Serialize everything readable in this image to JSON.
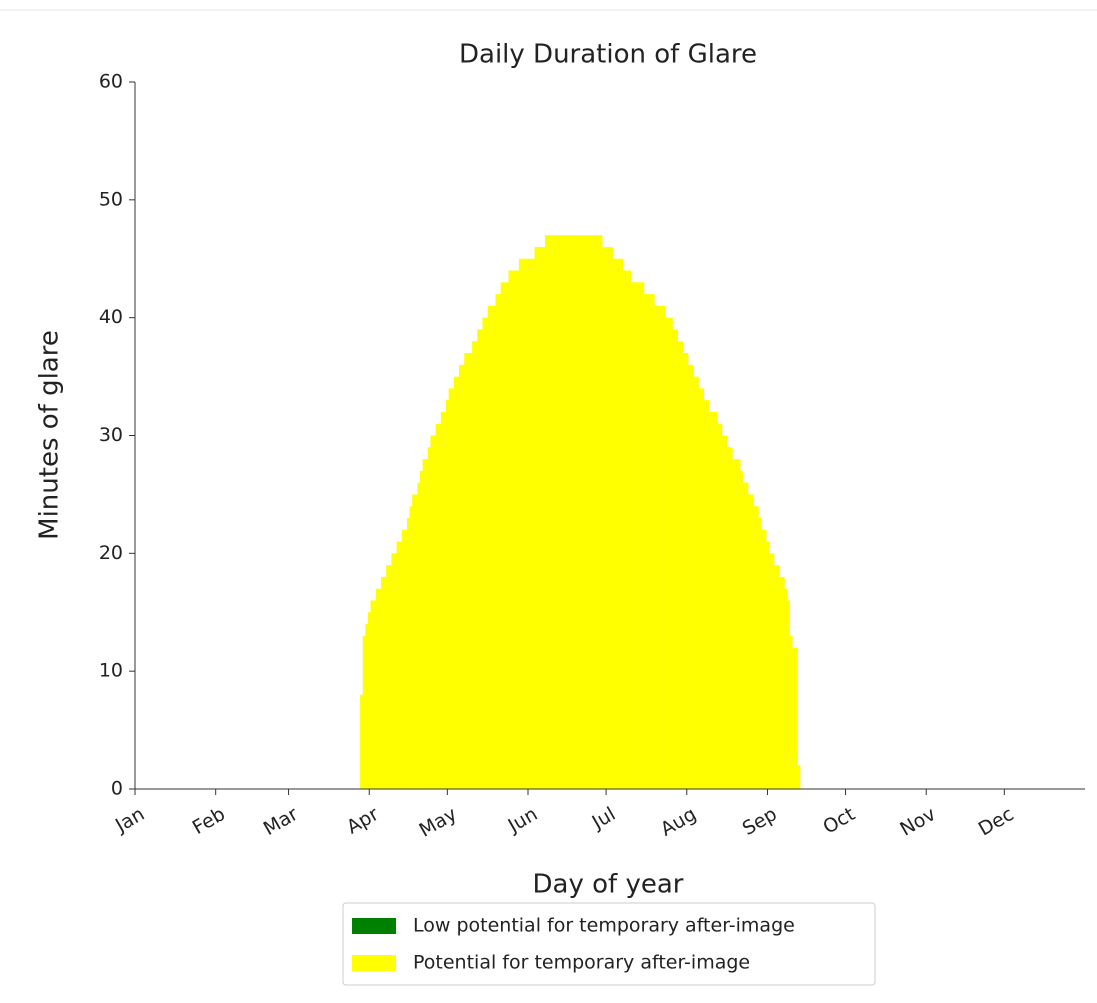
{
  "chart_data": {
    "type": "stacked_bar",
    "title": "Daily Duration of Glare",
    "xlabel": "Day of year",
    "ylabel": "Minutes of glare",
    "xlim": [
      1,
      366
    ],
    "ylim": [
      0,
      60
    ],
    "yticks": [
      0,
      10,
      20,
      30,
      40,
      50,
      60
    ],
    "xticks": [
      {
        "value": 1,
        "label": "Jan"
      },
      {
        "value": 32,
        "label": "Feb"
      },
      {
        "value": 60,
        "label": "Mar"
      },
      {
        "value": 91,
        "label": "Apr"
      },
      {
        "value": 121,
        "label": "May"
      },
      {
        "value": 152,
        "label": "Jun"
      },
      {
        "value": 182,
        "label": "Jul"
      },
      {
        "value": 213,
        "label": "Aug"
      },
      {
        "value": 244,
        "label": "Sep"
      },
      {
        "value": 274,
        "label": "Oct"
      },
      {
        "value": 305,
        "label": "Nov"
      },
      {
        "value": 335,
        "label": "Dec"
      }
    ],
    "legend": "below",
    "x": [
      88,
      89,
      90,
      91,
      92,
      93,
      94,
      95,
      96,
      97,
      98,
      99,
      100,
      101,
      102,
      103,
      104,
      105,
      106,
      107,
      108,
      109,
      110,
      111,
      112,
      113,
      114,
      115,
      116,
      117,
      118,
      119,
      120,
      121,
      122,
      123,
      124,
      125,
      126,
      127,
      128,
      129,
      130,
      131,
      132,
      133,
      134,
      135,
      136,
      137,
      138,
      139,
      140,
      141,
      142,
      143,
      144,
      145,
      146,
      147,
      148,
      149,
      150,
      151,
      152,
      153,
      154,
      155,
      156,
      157,
      158,
      159,
      160,
      161,
      162,
      163,
      164,
      165,
      166,
      167,
      168,
      169,
      170,
      171,
      172,
      173,
      174,
      175,
      176,
      177,
      178,
      179,
      180,
      181,
      182,
      183,
      184,
      185,
      186,
      187,
      188,
      189,
      190,
      191,
      192,
      193,
      194,
      195,
      196,
      197,
      198,
      199,
      200,
      201,
      202,
      203,
      204,
      205,
      206,
      207,
      208,
      209,
      210,
      211,
      212,
      213,
      214,
      215,
      216,
      217,
      218,
      219,
      220,
      221,
      222,
      223,
      224,
      225,
      226,
      227,
      228,
      229,
      230,
      231,
      232,
      233,
      234,
      235,
      236,
      237,
      238,
      239,
      240,
      241,
      242,
      243,
      244,
      245,
      246,
      247,
      248,
      249,
      250,
      251,
      252,
      253,
      254,
      255,
      256
    ],
    "series": [
      {
        "name": "Low potential for temporary after-image",
        "color": "#008000",
        "values": [
          0,
          0,
          0,
          0,
          0,
          0,
          0,
          0,
          0,
          0,
          0,
          0,
          0,
          0,
          0,
          0,
          0,
          0,
          0,
          0,
          0,
          0,
          0,
          0,
          0,
          0,
          0,
          0,
          0,
          0,
          0,
          0,
          0,
          0,
          0,
          0,
          0,
          0,
          0,
          0,
          0,
          0,
          0,
          0,
          0,
          0,
          0,
          0,
          0,
          0,
          0,
          0,
          0,
          0,
          0,
          0,
          0,
          0,
          0,
          0,
          0,
          0,
          0,
          0,
          0,
          0,
          0,
          0,
          0,
          0,
          0,
          0,
          0,
          0,
          0,
          0,
          0,
          0,
          0,
          0,
          0,
          0,
          0,
          0,
          0,
          0,
          0,
          0,
          0,
          0,
          0,
          0,
          0,
          0,
          0,
          0,
          0,
          0,
          0,
          0,
          0,
          0,
          0,
          0,
          0,
          0,
          0,
          0,
          0,
          0,
          0,
          0,
          0,
          0,
          0,
          0,
          0,
          0,
          0,
          0,
          0,
          0,
          0,
          0,
          0,
          0,
          0,
          0,
          0,
          0,
          0,
          0,
          0,
          0,
          0,
          0,
          0,
          0,
          0,
          0,
          0,
          0,
          0,
          0,
          0,
          0,
          0,
          0,
          0,
          0,
          0,
          0,
          0,
          0,
          0,
          0,
          0,
          0,
          0,
          0,
          0,
          0,
          0,
          0,
          0,
          0,
          0,
          0,
          0
        ]
      },
      {
        "name": "Potential for temporary after-image",
        "color": "#ffff00",
        "values": [
          8,
          13,
          14,
          15,
          16,
          16,
          17,
          17,
          18,
          18,
          19,
          19,
          20,
          20,
          21,
          21,
          22,
          22,
          23,
          24,
          25,
          25,
          26,
          27,
          28,
          28,
          29,
          30,
          30,
          31,
          31,
          32,
          32,
          33,
          34,
          34,
          35,
          35,
          36,
          36,
          37,
          37,
          37,
          38,
          38,
          39,
          39,
          40,
          40,
          41,
          41,
          41,
          42,
          42,
          43,
          43,
          43,
          44,
          44,
          44,
          44,
          45,
          45,
          45,
          45,
          45,
          45,
          46,
          46,
          46,
          46,
          47,
          47,
          47,
          47,
          47,
          47,
          47,
          47,
          47,
          47,
          47,
          47,
          47,
          47,
          47,
          47,
          47,
          47,
          47,
          47,
          47,
          47,
          46,
          46,
          46,
          46,
          45,
          45,
          45,
          45,
          44,
          44,
          44,
          43,
          43,
          43,
          43,
          43,
          42,
          42,
          42,
          42,
          41,
          41,
          41,
          41,
          40,
          40,
          40,
          39,
          39,
          38,
          38,
          37,
          37,
          36,
          36,
          35,
          35,
          34,
          34,
          33,
          33,
          32,
          32,
          32,
          31,
          31,
          30,
          30,
          29,
          29,
          28,
          28,
          28,
          27,
          26,
          26,
          25,
          25,
          24,
          24,
          23,
          22,
          22,
          21,
          20,
          20,
          19,
          19,
          18,
          18,
          17,
          16,
          13,
          12,
          12,
          2
        ]
      }
    ]
  }
}
